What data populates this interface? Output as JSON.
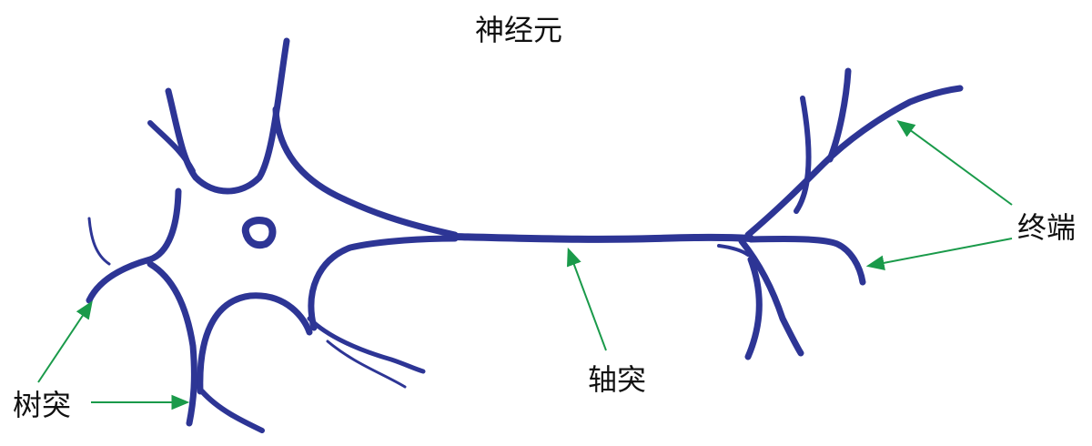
{
  "title": "神经元",
  "labels": {
    "dendrite": "树突",
    "axon": "轴突",
    "terminal": "终端"
  },
  "colors": {
    "neuron": "#2d3595",
    "arrow": "#1a9a4a",
    "text": "#111111",
    "background": "#ffffff"
  }
}
